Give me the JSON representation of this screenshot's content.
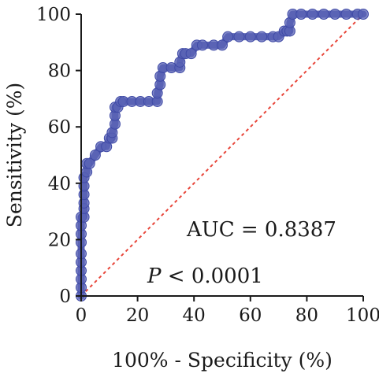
{
  "chart_data": {
    "type": "line",
    "xlabel": "100% - Specificity (%)",
    "ylabel": "Sensitivity (%)",
    "xlim": [
      0,
      100
    ],
    "ylim": [
      0,
      100
    ],
    "x_ticks": [
      "0",
      "20",
      "40",
      "60",
      "80",
      "100"
    ],
    "y_ticks": [
      "0",
      "20",
      "40",
      "60",
      "80",
      "100"
    ],
    "grid": false,
    "annotations": {
      "auc": "AUC = 0.8387",
      "p_symbol": "P",
      "p_value": " < 0.0001"
    },
    "series": [
      {
        "color": "#4b55ad",
        "x": [
          0,
          0,
          0,
          0,
          0,
          0,
          0,
          0,
          0,
          0,
          1,
          1,
          1,
          1,
          1,
          1,
          2,
          2,
          3,
          5,
          7,
          9,
          10,
          11,
          11,
          12,
          12,
          12,
          13,
          14,
          15,
          18,
          21,
          24,
          27,
          27,
          28,
          28,
          29,
          32,
          35,
          35,
          36,
          37,
          39,
          41,
          43,
          47,
          50,
          52,
          56,
          60,
          64,
          68,
          70,
          72,
          73,
          74,
          74,
          75,
          78,
          82,
          86,
          90,
          94,
          98,
          100
        ],
        "y": [
          0,
          3,
          6,
          9,
          12,
          15,
          19,
          22,
          25,
          28,
          28,
          31,
          33,
          36,
          39,
          42,
          44,
          47,
          47,
          50,
          53,
          53,
          56,
          56,
          58,
          61,
          64,
          67,
          67,
          69,
          69,
          69,
          69,
          69,
          69,
          72,
          75,
          78,
          81,
          81,
          81,
          83,
          86,
          86,
          86,
          89,
          89,
          89,
          89,
          92,
          92,
          92,
          92,
          92,
          92,
          94,
          94,
          94,
          97,
          100,
          100,
          100,
          100,
          100,
          100,
          100,
          100
        ]
      },
      {
        "x": [
          0,
          100
        ],
        "y": [
          0,
          100
        ],
        "color": "#e8463a",
        "style": "dashed"
      }
    ]
  }
}
